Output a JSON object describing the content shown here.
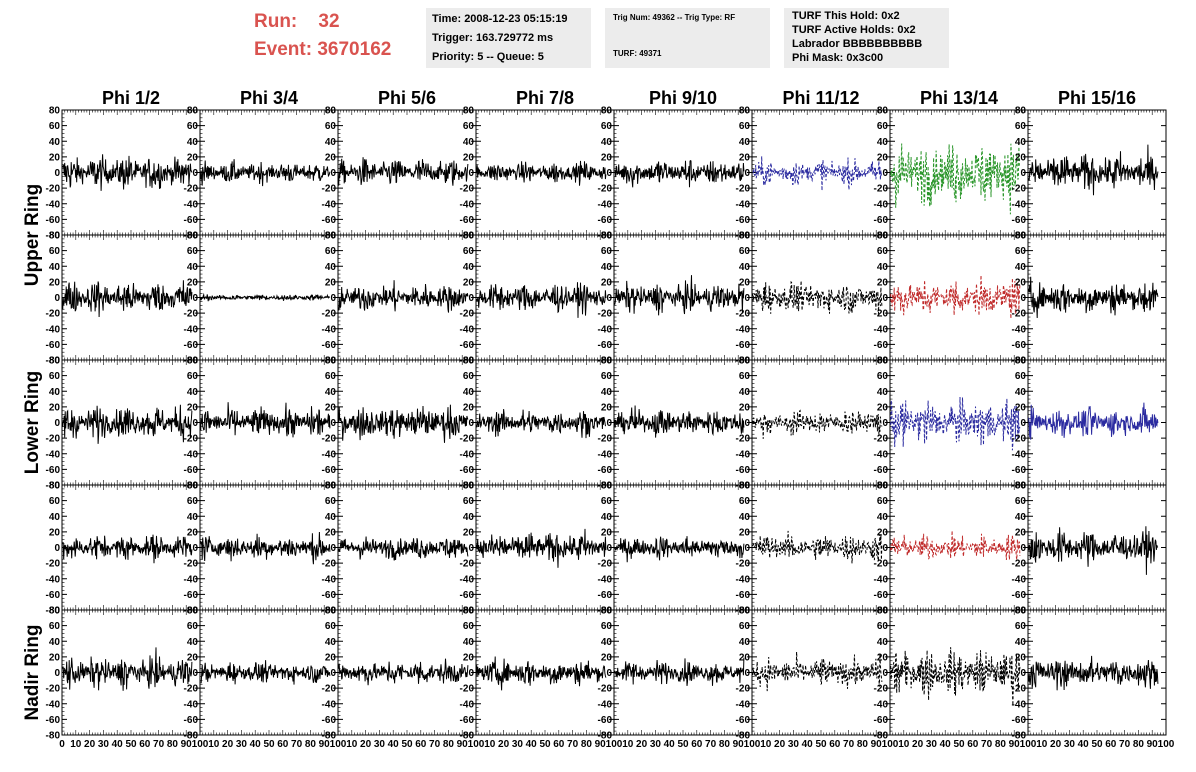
{
  "header": {
    "run_label": "Run:",
    "run_value": "32",
    "event_label": "Event:",
    "event_value": "3670162"
  },
  "info_boxes": {
    "time": "Time: 2008-12-23 05:15:19",
    "trigger": "Trigger: 163.729772 ms",
    "priority": "Priority: 5 -- Queue: 5",
    "trig_num": "Trig Num: 49362 -- Trig Type: RF",
    "turf": "TURF: 49371",
    "turf_hold": "TURF This Hold: 0x2",
    "turf_active": "TURF Active Holds: 0x2",
    "labrador": "Labrador BBBBBBBBBB",
    "phi_mask": "Phi Mask: 0x3c00"
  },
  "chart_data": {
    "type": "line",
    "columns": [
      "Phi 1/2",
      "Phi 3/4",
      "Phi 5/6",
      "Phi 7/8",
      "Phi 9/10",
      "Phi 11/12",
      "Phi 13/14",
      "Phi 15/16"
    ],
    "ring_labels": [
      "Upper Ring",
      "Lower Ring",
      "Nadir Ring"
    ],
    "ylim": [
      -80,
      80
    ],
    "yticks": [
      -80,
      -60,
      -40,
      -20,
      0,
      20,
      40,
      60,
      80
    ],
    "xlim": [
      0,
      100
    ],
    "xticks": [
      0,
      10,
      20,
      30,
      40,
      50,
      60,
      70,
      80,
      90,
      100
    ],
    "colors": {
      "black": "#000000",
      "blue": "#2b2ba0",
      "green": "#2a962a",
      "red": "#c02a2a"
    },
    "panels": [
      {
        "row": 0,
        "col": 0,
        "amp": 16,
        "color": "black",
        "dashed": false
      },
      {
        "row": 0,
        "col": 1,
        "amp": 10,
        "color": "black",
        "dashed": false
      },
      {
        "row": 0,
        "col": 2,
        "amp": 13,
        "color": "black",
        "dashed": false
      },
      {
        "row": 0,
        "col": 3,
        "amp": 10,
        "color": "black",
        "dashed": false
      },
      {
        "row": 0,
        "col": 4,
        "amp": 13,
        "color": "black",
        "dashed": false
      },
      {
        "row": 0,
        "col": 5,
        "amp": 12,
        "color": "blue",
        "dashed": true
      },
      {
        "row": 0,
        "col": 6,
        "amp": 30,
        "color": "green",
        "dashed": true
      },
      {
        "row": 0,
        "col": 7,
        "amp": 18,
        "color": "black",
        "dashed": false
      },
      {
        "row": 1,
        "col": 0,
        "amp": 16,
        "color": "black",
        "dashed": false
      },
      {
        "row": 1,
        "col": 1,
        "amp": 3,
        "color": "black",
        "dashed": false
      },
      {
        "row": 1,
        "col": 2,
        "amp": 13,
        "color": "black",
        "dashed": false
      },
      {
        "row": 1,
        "col": 3,
        "amp": 14,
        "color": "black",
        "dashed": false
      },
      {
        "row": 1,
        "col": 4,
        "amp": 14,
        "color": "black",
        "dashed": false
      },
      {
        "row": 1,
        "col": 5,
        "amp": 15,
        "color": "black",
        "dashed": true
      },
      {
        "row": 1,
        "col": 6,
        "amp": 18,
        "color": "red",
        "dashed": true
      },
      {
        "row": 1,
        "col": 7,
        "amp": 16,
        "color": "black",
        "dashed": false
      },
      {
        "row": 2,
        "col": 0,
        "amp": 16,
        "color": "black",
        "dashed": false
      },
      {
        "row": 2,
        "col": 1,
        "amp": 14,
        "color": "black",
        "dashed": false
      },
      {
        "row": 2,
        "col": 2,
        "amp": 16,
        "color": "black",
        "dashed": false
      },
      {
        "row": 2,
        "col": 3,
        "amp": 12,
        "color": "black",
        "dashed": false
      },
      {
        "row": 2,
        "col": 4,
        "amp": 13,
        "color": "black",
        "dashed": false
      },
      {
        "row": 2,
        "col": 5,
        "amp": 12,
        "color": "black",
        "dashed": true
      },
      {
        "row": 2,
        "col": 6,
        "amp": 22,
        "color": "blue",
        "dashed": true
      },
      {
        "row": 2,
        "col": 7,
        "amp": 14,
        "color": "blue",
        "dashed": false
      },
      {
        "row": 3,
        "col": 0,
        "amp": 12,
        "color": "black",
        "dashed": false
      },
      {
        "row": 3,
        "col": 1,
        "amp": 12,
        "color": "black",
        "dashed": false
      },
      {
        "row": 3,
        "col": 2,
        "amp": 11,
        "color": "black",
        "dashed": false
      },
      {
        "row": 3,
        "col": 3,
        "amp": 15,
        "color": "black",
        "dashed": false
      },
      {
        "row": 3,
        "col": 4,
        "amp": 11,
        "color": "black",
        "dashed": false
      },
      {
        "row": 3,
        "col": 5,
        "amp": 13,
        "color": "black",
        "dashed": true
      },
      {
        "row": 3,
        "col": 6,
        "amp": 12,
        "color": "red",
        "dashed": true
      },
      {
        "row": 3,
        "col": 7,
        "amp": 16,
        "color": "black",
        "dashed": false
      },
      {
        "row": 4,
        "col": 0,
        "amp": 15,
        "color": "black",
        "dashed": false
      },
      {
        "row": 4,
        "col": 1,
        "amp": 10,
        "color": "black",
        "dashed": false
      },
      {
        "row": 4,
        "col": 2,
        "amp": 12,
        "color": "black",
        "dashed": false
      },
      {
        "row": 4,
        "col": 3,
        "amp": 13,
        "color": "black",
        "dashed": false
      },
      {
        "row": 4,
        "col": 4,
        "amp": 11,
        "color": "black",
        "dashed": false
      },
      {
        "row": 4,
        "col": 5,
        "amp": 14,
        "color": "black",
        "dashed": true
      },
      {
        "row": 4,
        "col": 6,
        "amp": 22,
        "color": "black",
        "dashed": true
      },
      {
        "row": 4,
        "col": 7,
        "amp": 15,
        "color": "black",
        "dashed": false
      }
    ]
  }
}
